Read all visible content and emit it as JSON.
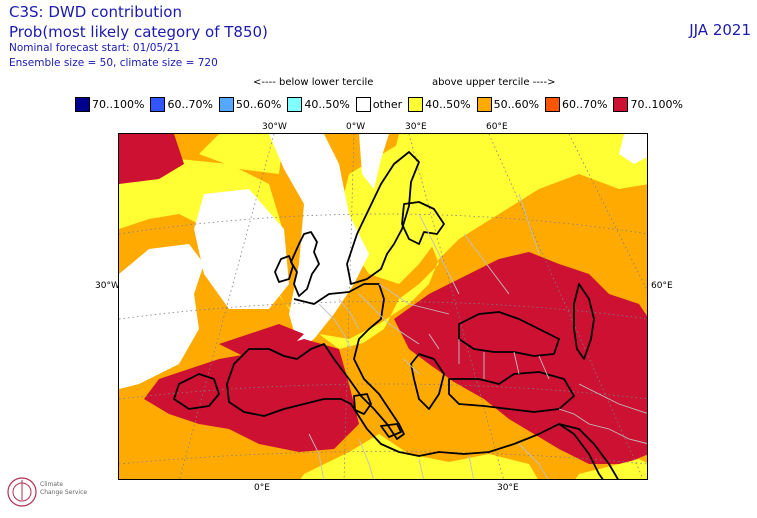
{
  "header": {
    "title": "C3S: DWD contribution",
    "subtitle": "Prob(most likely category of T850)",
    "forecast_start": "Nominal forecast start: 01/05/21",
    "ensemble": "Ensemble size = 50, climate size = 720",
    "season": "JJA 2021"
  },
  "legend": {
    "below_caption": "<---- below lower tercile",
    "above_caption": "above upper tercile ---->",
    "items": [
      {
        "label": "70..100%",
        "color": "#00008f"
      },
      {
        "label": "60..70%",
        "color": "#3355ff"
      },
      {
        "label": "50..60%",
        "color": "#55a8ff"
      },
      {
        "label": "40..50%",
        "color": "#7fffff"
      },
      {
        "label": "other",
        "color": "#ffffff"
      },
      {
        "label": "40..50%",
        "color": "#ffff33"
      },
      {
        "label": "50..60%",
        "color": "#ffaa00"
      },
      {
        "label": "60..70%",
        "color": "#ff5500"
      },
      {
        "label": "70..100%",
        "color": "#cc1133"
      }
    ]
  },
  "axes": {
    "top": [
      "30°W",
      "0°W",
      "30°E",
      "60°E"
    ],
    "left": "30°W",
    "right": "60°E",
    "bottom": [
      "0°E",
      "30°E"
    ]
  },
  "logo": {
    "line1": "Climate",
    "line2": "Change Service"
  }
}
